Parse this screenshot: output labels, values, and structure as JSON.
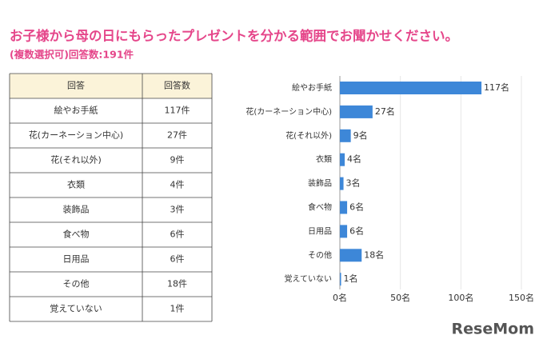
{
  "title": "お子様から母の日にもらったプレゼントを分かる範囲でお聞かせください。",
  "subtitle": "(複数選択可)回答数:191件",
  "table": {
    "header": [
      "回答",
      "回答数"
    ],
    "rows": [
      [
        "絵やお手紙",
        "117件"
      ],
      [
        "花(カーネーション中心)",
        "27件"
      ],
      [
        "花(それ以外)",
        "9件"
      ],
      [
        "衣類",
        "4件"
      ],
      [
        "装飾品",
        "3件"
      ],
      [
        "食べ物",
        "6件"
      ],
      [
        "日用品",
        "6件"
      ],
      [
        "その他",
        "18件"
      ],
      [
        "覚えていない",
        "1件"
      ]
    ]
  },
  "chart_data": {
    "type": "bar",
    "orientation": "horizontal",
    "categories": [
      "絵やお手紙",
      "花(カーネーション中心)",
      "花(それ以外)",
      "衣類",
      "装飾品",
      "食べ物",
      "日用品",
      "その他",
      "覚えていない"
    ],
    "values": [
      117,
      27,
      9,
      4,
      3,
      6,
      6,
      18,
      1
    ],
    "value_labels": [
      "117名",
      "27名",
      "9名",
      "4名",
      "3名",
      "6名",
      "6名",
      "18名",
      "1名"
    ],
    "xlim": [
      0,
      150
    ],
    "xticks": [
      {
        "value": 0,
        "label": "0名"
      },
      {
        "value": 50,
        "label": "50名"
      },
      {
        "value": 100,
        "label": "100名"
      },
      {
        "value": 150,
        "label": "150名"
      }
    ],
    "grid": true,
    "color": "#3d87d8"
  },
  "logo": "ReseMom"
}
